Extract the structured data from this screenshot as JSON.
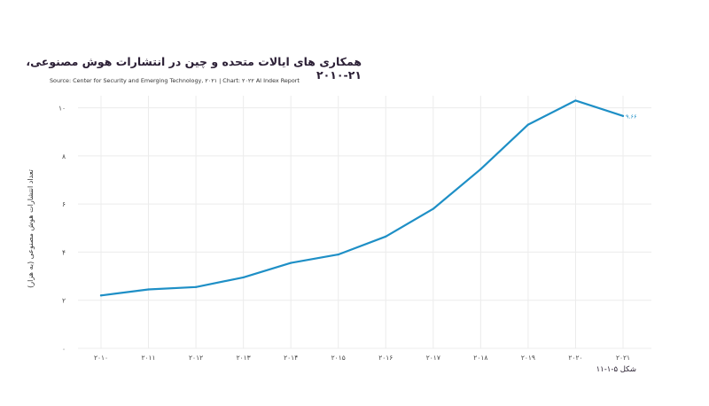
{
  "title": "همکاری های ایالات متحده و چین در انتشارات هوش مصنوعی، ۲۱-۲۰۱۰",
  "source": "Source: Center for Security and Emerging Technology, ۲۰۲۱ | Chart: ۲۰۲۲ AI Index Report",
  "figure_label": "شکل ۵-۱-۱۱",
  "colors": {
    "line": "#1e8fc6",
    "grid": "#ececec",
    "text": "#2b2233"
  },
  "chart_data": {
    "type": "line",
    "title": "همکاری های ایالات متحده و چین در انتشارات هوش مصنوعی، ۲۱-۲۰۱۰",
    "ylabel": "تعداد انتشارات هوش مصنوعی (به هزار)",
    "xlabel": "",
    "x": [
      2010,
      2011,
      2012,
      2013,
      2014,
      2015,
      2016,
      2017,
      2018,
      2019,
      2020,
      2021
    ],
    "x_tick_labels": [
      "۲۰۱۰",
      "۲۰۱۱",
      "۲۰۱۲",
      "۲۰۱۳",
      "۲۰۱۴",
      "۲۰۱۵",
      "۲۰۱۶",
      "۲۰۱۷",
      "۲۰۱۸",
      "۲۰۱۹",
      "۲۰۲۰",
      "۲۰۲۱"
    ],
    "series": [
      {
        "values": [
          2.2,
          2.45,
          2.55,
          2.95,
          3.55,
          3.9,
          4.65,
          5.8,
          7.45,
          9.3,
          10.3,
          9.66
        ]
      }
    ],
    "y_ticks": [
      0,
      2,
      4,
      6,
      8,
      10
    ],
    "y_tick_labels": [
      "۰",
      "۲",
      "۴",
      "۶",
      "۸",
      "۱۰"
    ],
    "ylim": [
      0,
      10.5
    ],
    "end_label": "۹.۶۶",
    "grid": true
  }
}
